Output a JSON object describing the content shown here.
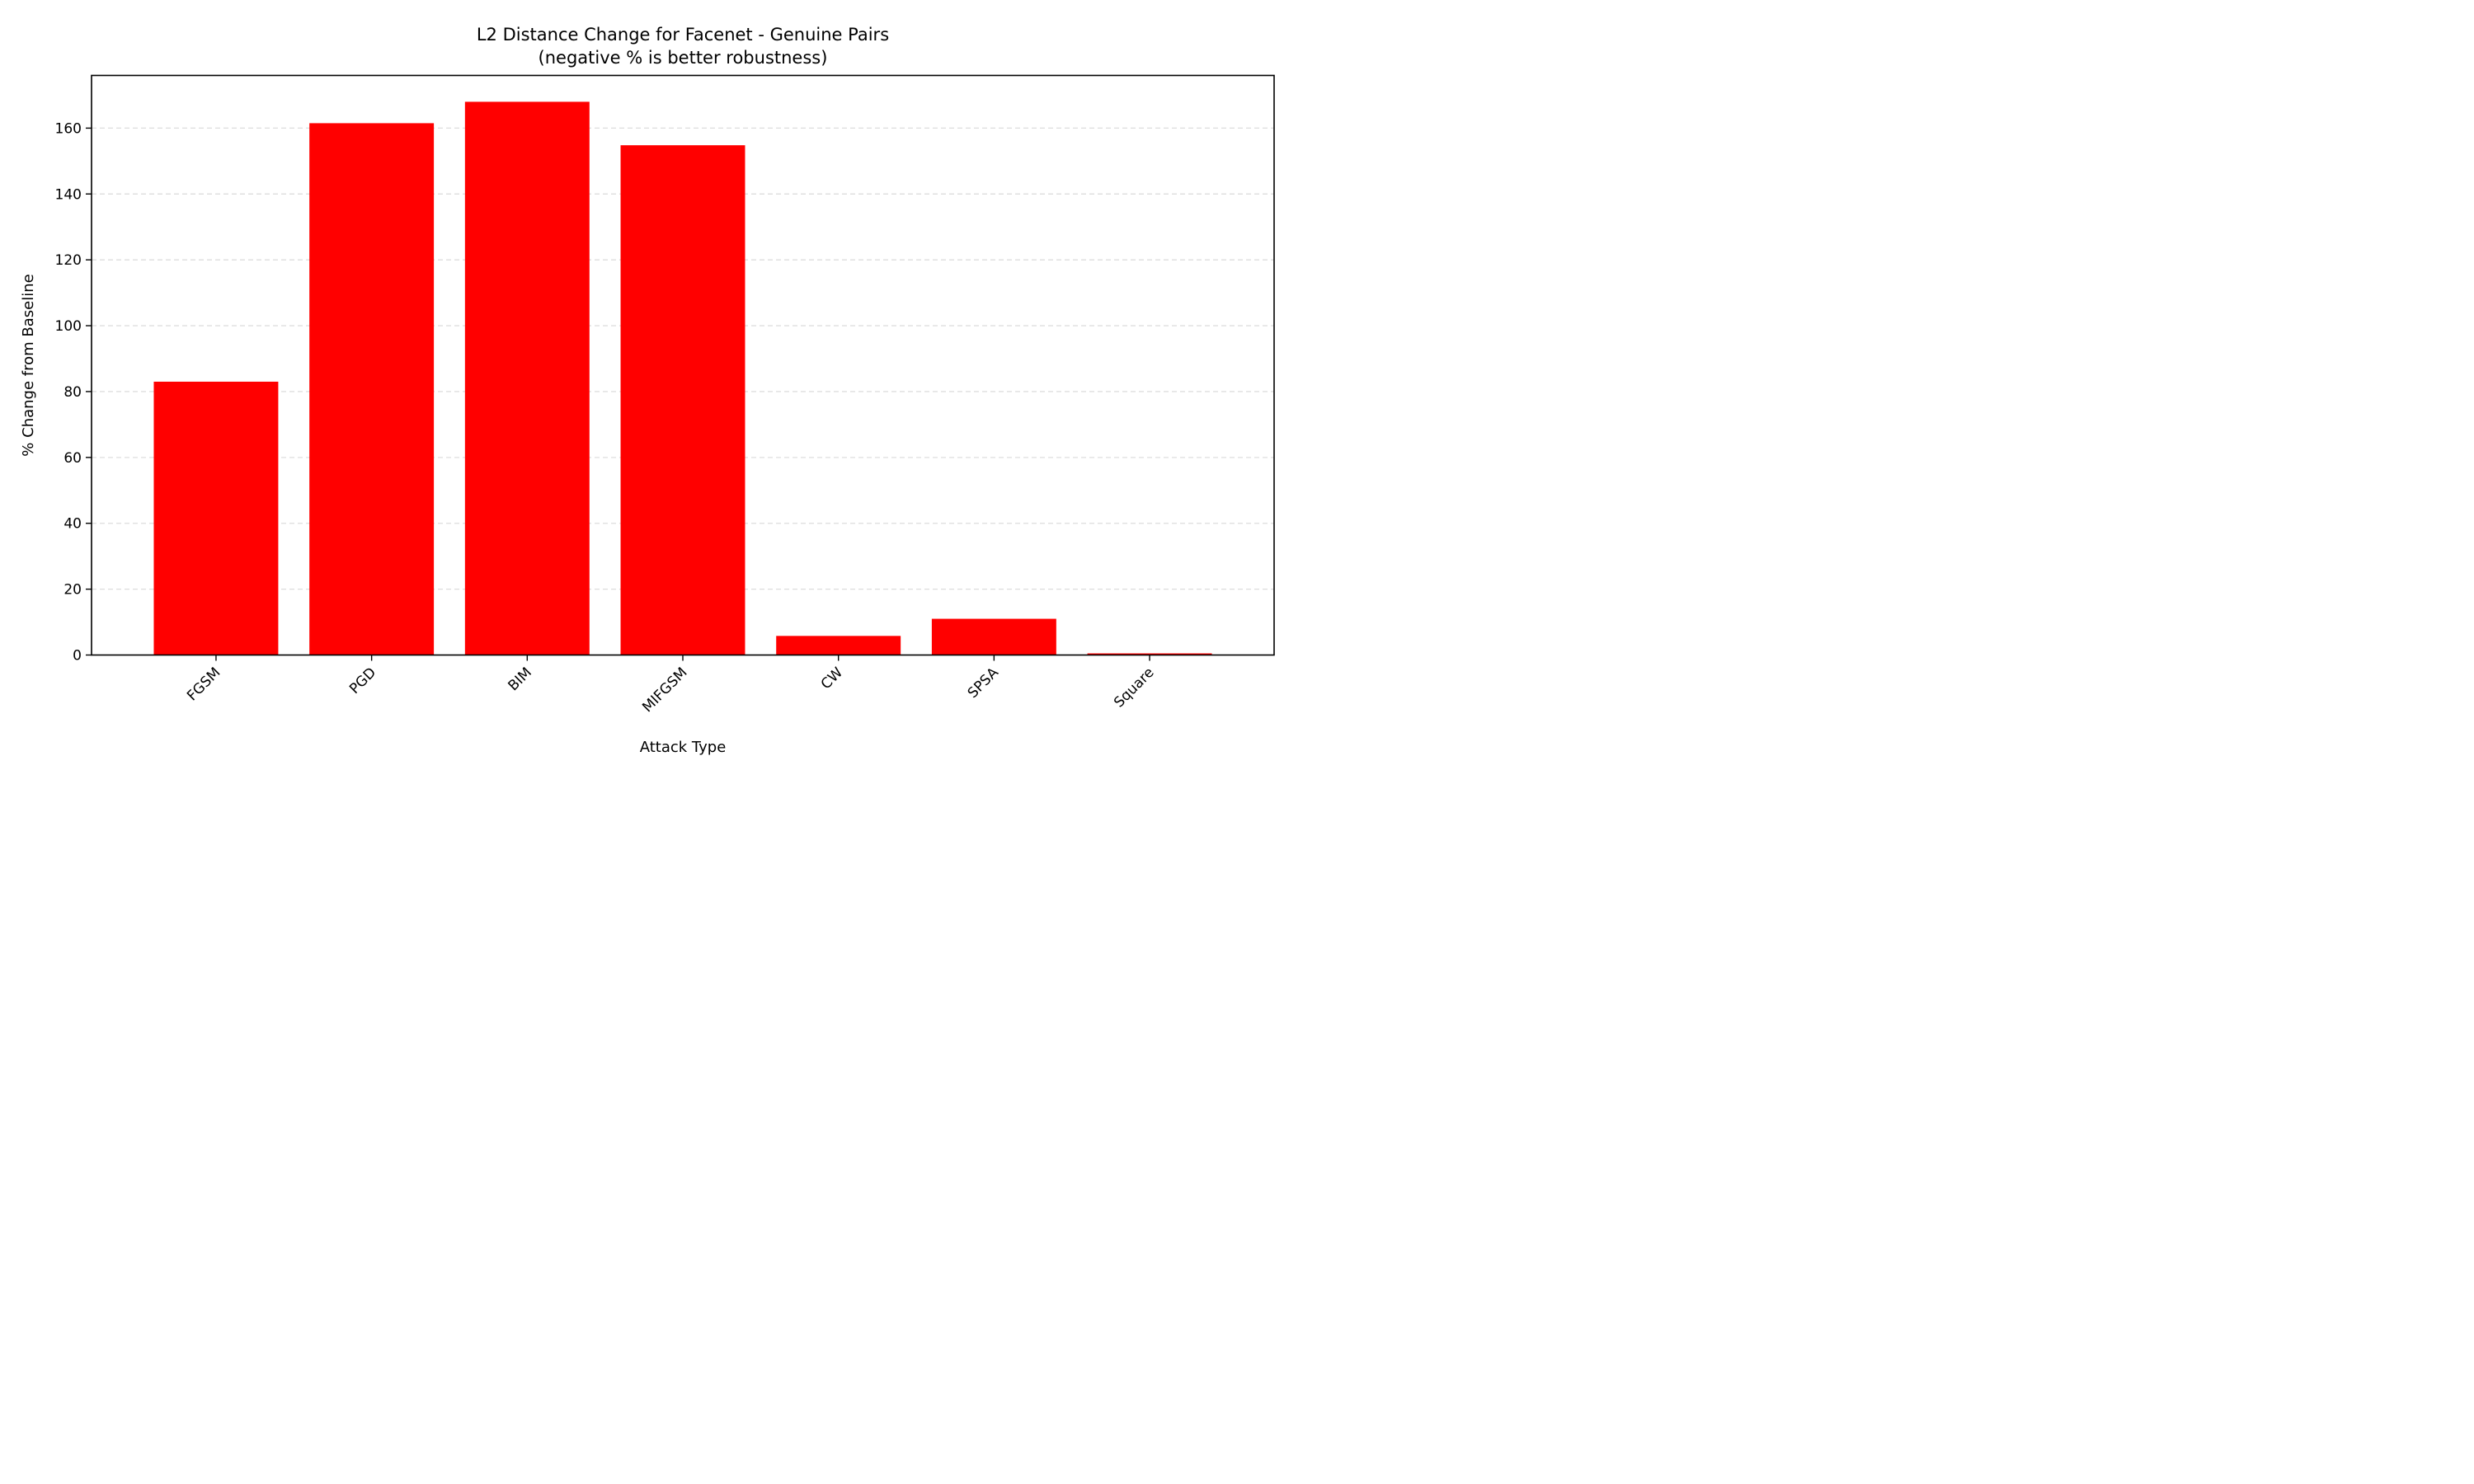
{
  "chart_data": {
    "type": "bar",
    "title": "L2 Distance Change for Facenet - Genuine Pairs",
    "subtitle": "(negative % is better robustness)",
    "xlabel": "Attack Type",
    "ylabel": "% Change from Baseline",
    "categories": [
      "FGSM",
      "PGD",
      "BIM",
      "MIFGSM",
      "CW",
      "SPSA",
      "Square"
    ],
    "values": [
      83.0,
      161.5,
      168.0,
      154.8,
      5.8,
      11.0,
      0.5
    ],
    "ylim": [
      0,
      176
    ],
    "yticks": [
      0,
      20,
      40,
      60,
      80,
      100,
      120,
      140,
      160
    ],
    "ytick_labels": [
      "0",
      "20",
      "40",
      "60",
      "80",
      "100",
      "120",
      "140",
      "160"
    ],
    "bar_color": "#ff0000",
    "grid": "horizontal dashed",
    "grid_color": "#dddddd",
    "legend": "none"
  }
}
